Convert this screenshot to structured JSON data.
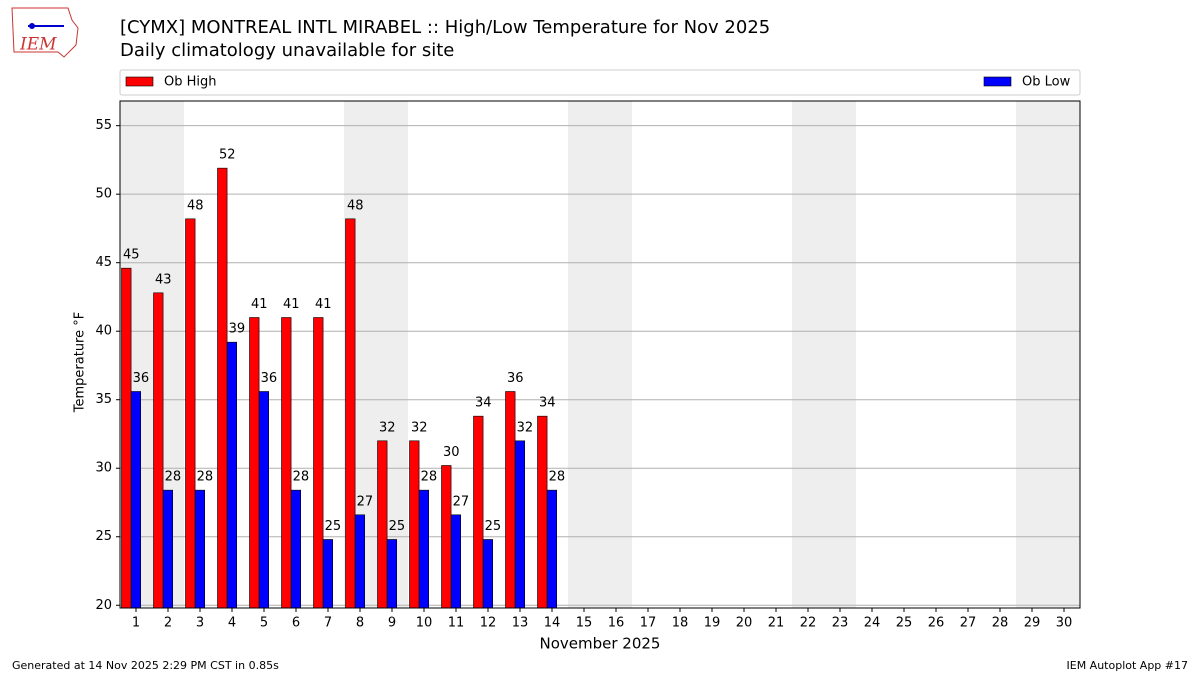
{
  "logo_text": "IEM",
  "footer_left": "Generated at 14 Nov 2025 2:29 PM CST in 0.85s",
  "footer_right": "IEM Autoplot App #17",
  "chart_data": {
    "type": "bar",
    "title": "[CYMX] MONTREAL INTL MIRABEL :: High/Low Temperature for Nov 2025",
    "subtitle": "Daily climatology unavailable for site",
    "x_label": "November 2025",
    "y_label": "Temperature °F",
    "categories": [
      "1",
      "2",
      "3",
      "4",
      "5",
      "6",
      "7",
      "8",
      "9",
      "10",
      "11",
      "12",
      "13",
      "14",
      "15",
      "16",
      "17",
      "18",
      "19",
      "20",
      "21",
      "22",
      "23",
      "24",
      "25",
      "26",
      "27",
      "28",
      "29",
      "30"
    ],
    "series": [
      {
        "name": "Ob High",
        "color": "#ff0000",
        "values": [
          44.6,
          42.8,
          48.2,
          51.9,
          41.0,
          41.0,
          41.0,
          48.2,
          32.0,
          32.0,
          30.2,
          33.8,
          35.6,
          33.8,
          null,
          null,
          null,
          null,
          null,
          null,
          null,
          null,
          null,
          null,
          null,
          null,
          null,
          null,
          null,
          null
        ],
        "value_labels": [
          "45",
          "43",
          "48",
          "52",
          "41",
          "41",
          "41",
          "48",
          "32",
          "32",
          "30",
          "34",
          "36",
          "34",
          null,
          null,
          null,
          null,
          null,
          null,
          null,
          null,
          null,
          null,
          null,
          null,
          null,
          null,
          null,
          null
        ]
      },
      {
        "name": "Ob Low",
        "color": "#0000ff",
        "values": [
          35.6,
          28.4,
          28.4,
          39.2,
          35.6,
          28.4,
          24.8,
          26.6,
          24.8,
          28.4,
          26.6,
          24.8,
          32.0,
          28.4,
          null,
          null,
          null,
          null,
          null,
          null,
          null,
          null,
          null,
          null,
          null,
          null,
          null,
          null,
          null,
          null
        ],
        "value_labels": [
          "36",
          "28",
          "28",
          "39",
          "36",
          "28",
          "25",
          "27",
          "25",
          "28",
          "27",
          "25",
          "32",
          "28",
          null,
          null,
          null,
          null,
          null,
          null,
          null,
          null,
          null,
          null,
          null,
          null,
          null,
          null,
          null,
          null
        ]
      }
    ],
    "ylim": [
      19.8,
      56.8
    ],
    "yticks": [
      20,
      25,
      30,
      35,
      40,
      45,
      50,
      55
    ],
    "grid": true
  }
}
